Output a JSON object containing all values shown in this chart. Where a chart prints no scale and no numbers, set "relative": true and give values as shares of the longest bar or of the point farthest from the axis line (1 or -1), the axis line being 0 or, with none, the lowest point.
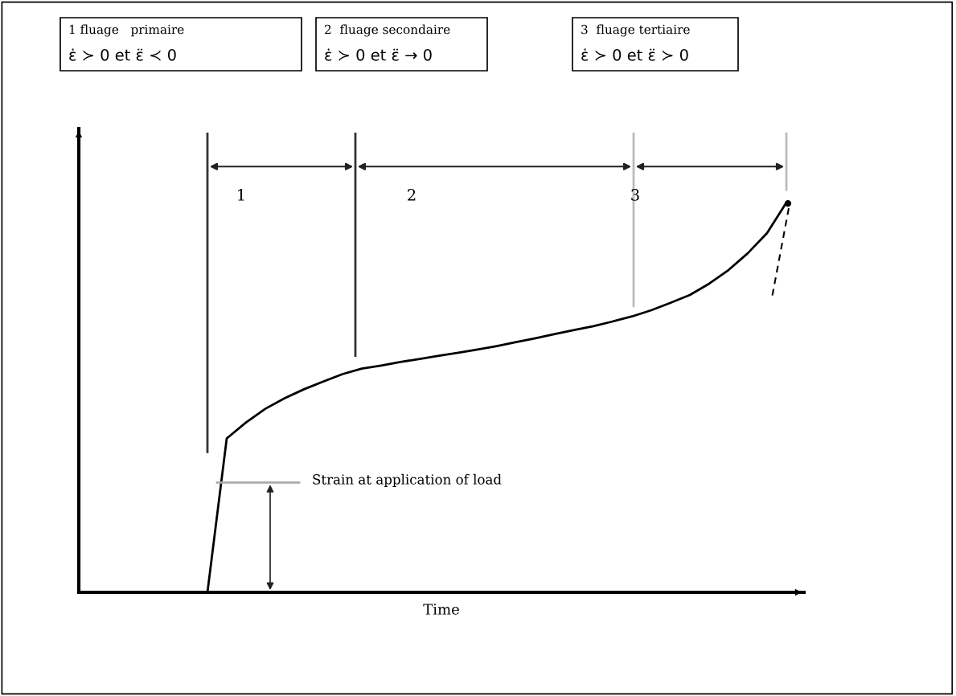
{
  "chart_data": {
    "type": "line",
    "relative": true,
    "xlabel": "Time",
    "categories": [
      null,
      null,
      null,
      null,
      null,
      null,
      null,
      null,
      null,
      null,
      null,
      null,
      null,
      null,
      null,
      null,
      null,
      null,
      null,
      null,
      null,
      null,
      null,
      null,
      null,
      null,
      null,
      null,
      null,
      null,
      null
    ],
    "series": [
      {
        "color": "#000000",
        "values": [
          0,
          0.395,
          0.436,
          0.471,
          0.498,
          0.521,
          0.541,
          0.56,
          0.574,
          0.582,
          0.591,
          0.599,
          0.607,
          0.615,
          0.623,
          0.632,
          0.642,
          0.652,
          0.663,
          0.673,
          0.683,
          0.695,
          0.708,
          0.724,
          0.743,
          0.763,
          0.792,
          0.827,
          0.87,
          0.922,
          1
        ]
      }
    ],
    "annotations": [
      "1 fluage   primaire",
      "ε̇ ≻ 0 et ε̈ ≺ 0",
      "2  fluage secondaire",
      "ε̇ ≻ 0 et ε̈ → 0",
      "3  fluage tertiaire",
      "ε̇ ≻ 0 et ε̈ ≻ 0",
      "1",
      "2",
      "3",
      "Strain at application of load"
    ],
    "grid": false,
    "legend": false,
    "marker": "none",
    "line_style": "solid"
  }
}
